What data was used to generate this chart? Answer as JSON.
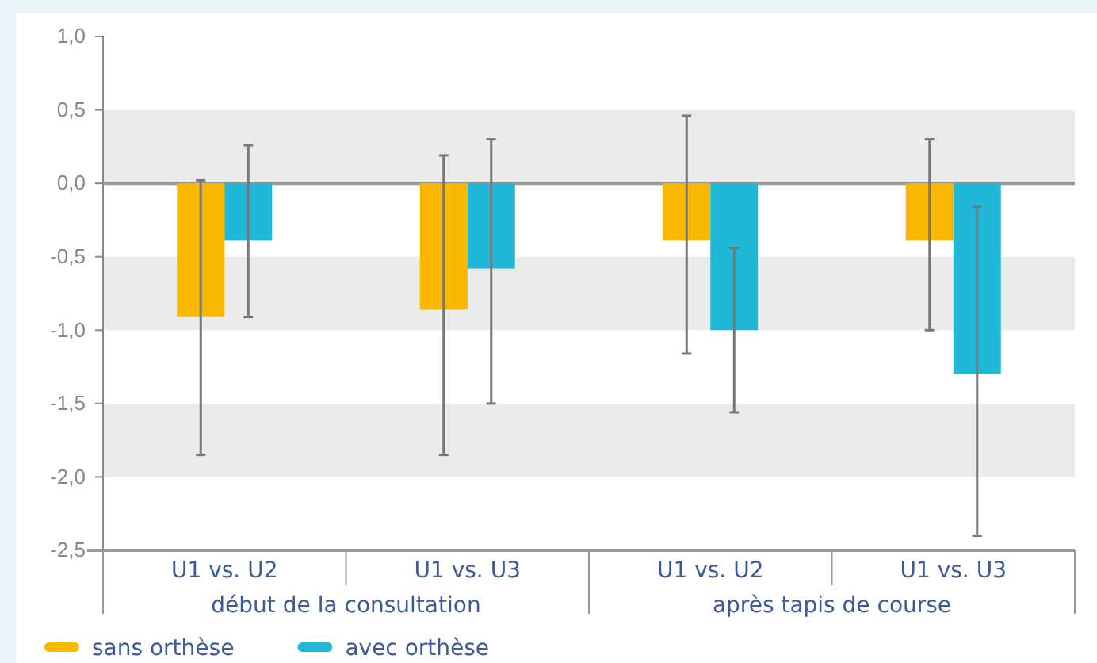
{
  "chart_data": {
    "type": "bar",
    "categories": [
      "U1 vs. U2",
      "U1 vs. U3",
      "U1 vs. U2",
      "U1 vs. U3"
    ],
    "series": [
      {
        "name": "sans orthèse",
        "color": "#f9b700",
        "values": [
          -0.91,
          -0.86,
          -0.39,
          -0.39
        ],
        "errors": [
          [
            -1.85,
            0.02
          ],
          [
            -1.85,
            0.19
          ],
          [
            -1.16,
            0.46
          ],
          [
            -1.0,
            0.3
          ]
        ]
      },
      {
        "name": "avec orthèse",
        "color": "#20b8d6",
        "values": [
          -0.39,
          -0.58,
          -1.0,
          -1.3
        ],
        "errors": [
          [
            -0.91,
            0.26
          ],
          [
            -1.5,
            0.3
          ],
          [
            -1.56,
            -0.44
          ],
          [
            -2.4,
            -0.16
          ]
        ]
      }
    ],
    "annotations": [
      "début de la consultation",
      "après tapis de course"
    ],
    "ylim": [
      -2.5,
      1.0
    ],
    "yticks": [
      {
        "value": 1.0,
        "label": "1,0"
      },
      {
        "value": 0.5,
        "label": "0,5"
      },
      {
        "value": 0,
        "label": "0,0"
      },
      {
        "value": -0.5,
        "label": "-0,5"
      },
      {
        "value": -1.0,
        "label": "-1,0"
      },
      {
        "value": -1.5,
        "label": "-1,5"
      },
      {
        "value": -2.0,
        "label": "-2,0"
      },
      {
        "value": -2.5,
        "label": "-2,5"
      }
    ],
    "grid": "y",
    "legend": "bottom left"
  }
}
